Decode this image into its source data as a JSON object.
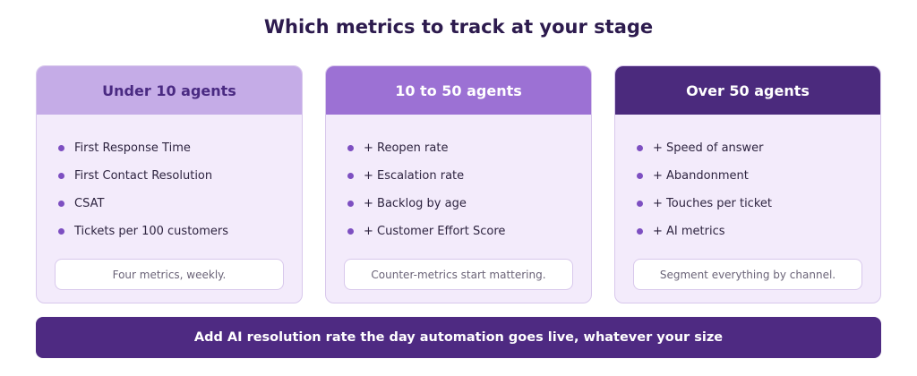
{
  "title": "Which metrics to track at your stage",
  "colors": {
    "title": "#2d1b4e",
    "card_bg": "#f3ebfb",
    "card_border": "#d8c8ec",
    "header_light": "#c5ace7",
    "header_mid": "#9c71d4",
    "header_dark": "#4b2a7d",
    "bullet": "#7d4fc1",
    "banner": "#4e2a82"
  },
  "cards": [
    {
      "header": "Under 10 agents",
      "items": [
        "First Response Time",
        "First Contact Resolution",
        "CSAT",
        "Tickets per 100 customers"
      ],
      "note": "Four metrics, weekly."
    },
    {
      "header": "10 to 50 agents",
      "items": [
        "+ Reopen rate",
        "+ Escalation rate",
        "+ Backlog by age",
        "+ Customer Effort Score"
      ],
      "note": "Counter-metrics start mattering."
    },
    {
      "header": "Over 50 agents",
      "items": [
        "+ Speed of answer",
        "+ Abandonment",
        "+ Touches per ticket",
        "+ AI metrics"
      ],
      "note": "Segment everything by channel."
    }
  ],
  "banner": "Add AI resolution rate the day automation goes live, whatever your size"
}
